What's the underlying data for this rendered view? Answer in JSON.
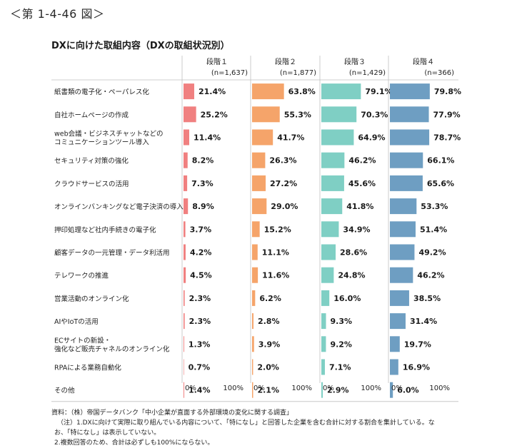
{
  "figure_label": "＜第 1-4-46 図＞",
  "chart_data": {
    "type": "bar",
    "title": "DXに向けた取組内容（DXの取組状況別）",
    "categories": [
      [
        "紙書類の電子化・ペーパレス化"
      ],
      [
        "自社ホームページの作成"
      ],
      [
        "web会議・ビジネスチャットなどの",
        "コミュニケーションツール導入"
      ],
      [
        "セキュリティ対策の強化"
      ],
      [
        "クラウドサービスの活用"
      ],
      [
        "オンラインバンキングなど電子決済の導入"
      ],
      [
        "押印処理など社内手続きの電子化"
      ],
      [
        "顧客データの一元管理・データ利活用"
      ],
      [
        "テレワークの推進"
      ],
      [
        "営業活動のオンライン化"
      ],
      [
        "AIやIoTの活用"
      ],
      [
        "ECサイトの新設・",
        "強化など販売チャネルのオンライン化"
      ],
      [
        "RPAによる業務自動化"
      ],
      [
        "その他"
      ]
    ],
    "series": [
      {
        "name": "段階１",
        "n": "(n=1,637)",
        "color": "#f08080",
        "values": [
          21.4,
          25.2,
          11.4,
          8.2,
          7.3,
          8.9,
          3.7,
          4.2,
          4.5,
          2.3,
          2.3,
          1.3,
          0.7,
          1.4
        ]
      },
      {
        "name": "段階２",
        "n": "(n=1,877)",
        "color": "#f5a46a",
        "values": [
          63.8,
          55.3,
          41.7,
          26.3,
          27.2,
          29.0,
          15.2,
          11.1,
          11.6,
          6.2,
          2.8,
          3.9,
          2.0,
          2.1
        ]
      },
      {
        "name": "段階３",
        "n": "(n=1,429)",
        "color": "#7fcfc4",
        "values": [
          79.1,
          70.3,
          64.9,
          46.2,
          45.6,
          41.8,
          34.9,
          28.6,
          24.8,
          16.0,
          9.3,
          9.2,
          7.1,
          2.9
        ]
      },
      {
        "name": "段階４",
        "n": "(n=366)",
        "color": "#6e9ec2",
        "values": [
          79.8,
          77.9,
          78.7,
          66.1,
          65.6,
          53.3,
          51.4,
          49.2,
          46.2,
          38.5,
          31.4,
          19.7,
          16.9,
          6.0
        ]
      }
    ],
    "xaxis": {
      "min": 0,
      "max": 100,
      "tick_labels": [
        "0%",
        "100%"
      ]
    },
    "value_format": "%"
  },
  "notes": [
    "資料：（株）帝国データバンク「中小企業が直面する外部環境の変化に関する調査」",
    "（注）1.DXに向けて実際に取り組んでいる内容について、「特になし」と回答した企業を含む合計に対する割合を集計している。な",
    "お、「特になし」は表示していない。",
    "2.複数回答のため、合計は必ずしも100%にならない。"
  ]
}
